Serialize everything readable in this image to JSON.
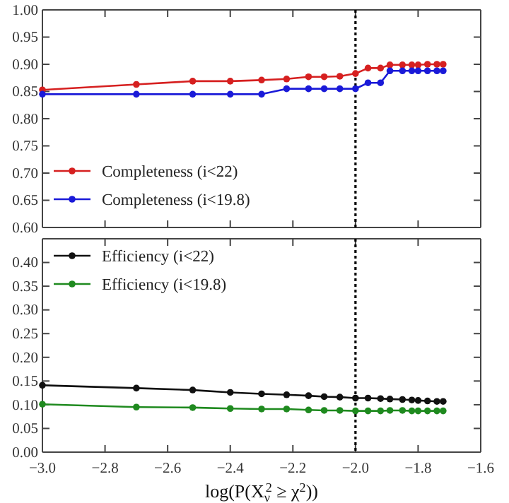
{
  "chart_data": [
    {
      "type": "line",
      "x": [
        -3.0,
        -2.7,
        -2.52,
        -2.4,
        -2.3,
        -2.22,
        -2.15,
        -2.1,
        -2.05,
        -2.0,
        -1.96,
        -1.92,
        -1.89,
        -1.85,
        -1.82,
        -1.8,
        -1.77,
        -1.74,
        -1.72
      ],
      "series": [
        {
          "name": "Completeness (i<22)",
          "color": "#d62020",
          "values": [
            0.853,
            0.863,
            0.869,
            0.869,
            0.871,
            0.873,
            0.877,
            0.877,
            0.878,
            0.883,
            0.893,
            0.893,
            0.899,
            0.899,
            0.899,
            0.899,
            0.9,
            0.9,
            0.9
          ]
        },
        {
          "name": "Completeness (i<19.8)",
          "color": "#1a1ad8",
          "values": [
            0.845,
            0.845,
            0.845,
            0.845,
            0.845,
            0.855,
            0.855,
            0.855,
            0.855,
            0.855,
            0.866,
            0.866,
            0.888,
            0.888,
            0.888,
            0.888,
            0.888,
            0.888,
            0.888
          ]
        }
      ],
      "xlim": [
        -3.0,
        -1.6
      ],
      "xticks": [
        -3.0,
        -2.8,
        -2.6,
        -2.4,
        -2.2,
        -2.0,
        -1.8,
        -1.6
      ],
      "ylim": [
        0.6,
        1.0
      ],
      "yticks": [
        {
          "value": 0.6,
          "label": "0.60"
        },
        {
          "value": 0.65,
          "label": "0.65"
        },
        {
          "value": 0.7,
          "label": "0.70"
        },
        {
          "value": 0.75,
          "label": "0.75"
        },
        {
          "value": 0.8,
          "label": "0.80"
        },
        {
          "value": 0.85,
          "label": "0.85"
        },
        {
          "value": 0.9,
          "label": "0.90"
        },
        {
          "value": 0.95,
          "label": "0.95"
        },
        {
          "value": 1.0,
          "label": "1.00"
        }
      ],
      "tick_labels": "y",
      "marker": "circle",
      "line_style": "solid",
      "legend": "bottom left",
      "grid": false,
      "ref_lines": [
        {
          "axis": "x",
          "value": -2.0,
          "color": "#000000",
          "line_style": "dotted"
        }
      ]
    },
    {
      "type": "line",
      "x": [
        -3.0,
        -2.7,
        -2.52,
        -2.4,
        -2.3,
        -2.22,
        -2.15,
        -2.1,
        -2.05,
        -2.0,
        -1.96,
        -1.92,
        -1.89,
        -1.85,
        -1.82,
        -1.8,
        -1.77,
        -1.74,
        -1.72
      ],
      "series": [
        {
          "name": "Efficiency (i<22)",
          "color": "#111111",
          "values": [
            0.141,
            0.135,
            0.131,
            0.126,
            0.123,
            0.121,
            0.119,
            0.117,
            0.116,
            0.114,
            0.114,
            0.113,
            0.112,
            0.111,
            0.11,
            0.109,
            0.108,
            0.107,
            0.107
          ]
        },
        {
          "name": "Efficiency (i<19.8)",
          "color": "#1f8a1f",
          "values": [
            0.101,
            0.095,
            0.094,
            0.092,
            0.091,
            0.091,
            0.089,
            0.088,
            0.088,
            0.087,
            0.087,
            0.087,
            0.088,
            0.088,
            0.087,
            0.087,
            0.087,
            0.087,
            0.087
          ]
        }
      ],
      "xlim": [
        -3.0,
        -1.6
      ],
      "xticks": [
        {
          "value": -3.0,
          "label": "−3.0"
        },
        {
          "value": -2.8,
          "label": "−2.8"
        },
        {
          "value": -2.6,
          "label": "−2.6"
        },
        {
          "value": -2.4,
          "label": "−2.4"
        },
        {
          "value": -2.2,
          "label": "−2.2"
        },
        {
          "value": -2.0,
          "label": "−2.0"
        },
        {
          "value": -1.8,
          "label": "−1.8"
        },
        {
          "value": -1.6,
          "label": "−1.6"
        }
      ],
      "xlabel": "log(P(X$_{ν}$$^{2}$ ≥ χ$^{2}$))",
      "ylim": [
        0,
        0.45
      ],
      "yticks": [
        {
          "value": 0,
          "label": "0.00"
        },
        {
          "value": 0.05,
          "label": "0.05"
        },
        {
          "value": 0.1,
          "label": "0.10"
        },
        {
          "value": 0.15,
          "label": "0.15"
        },
        {
          "value": 0.2,
          "label": "0.20"
        },
        {
          "value": 0.25,
          "label": "0.25"
        },
        {
          "value": 0.3,
          "label": "0.30"
        },
        {
          "value": 0.35,
          "label": "0.35"
        },
        {
          "value": 0.4,
          "label": "0.40"
        },
        {
          "value": 0.45,
          "label": null
        }
      ],
      "marker": "circle",
      "line_style": "solid",
      "legend": "top left",
      "grid": false,
      "ref_lines": [
        {
          "axis": "x",
          "value": -2.0,
          "color": "#000000",
          "line_style": "dotted"
        }
      ]
    }
  ]
}
